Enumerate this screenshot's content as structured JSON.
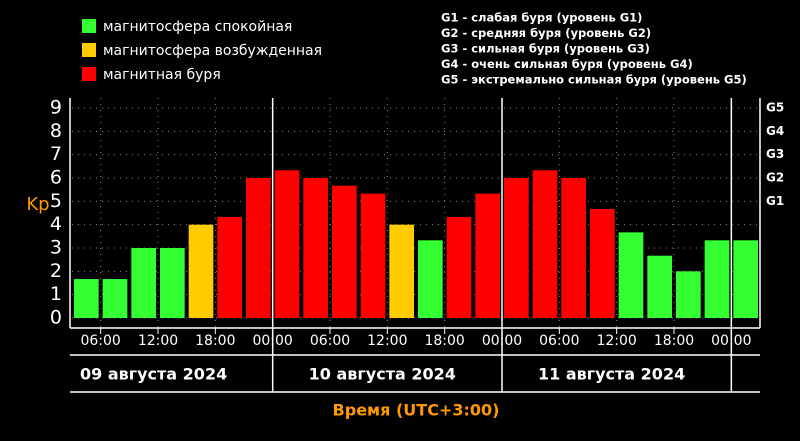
{
  "chart_data": {
    "type": "bar",
    "legend": [
      {
        "name": "магнитосфера спокойная",
        "color": "#33ff33"
      },
      {
        "name": "магнитосфера возбужденная",
        "color": "#ffcc00"
      },
      {
        "name": "магнитная буря",
        "color": "#ff0000"
      }
    ],
    "notes": [
      "G1 - слабая буря (уровень G1)",
      "G2 - средняя буря (уровень G2)",
      "G3 - сильная буря (уровень G3)",
      "G4 - очень сильная буря (уровень G4)",
      "G5 - экстремально сильная буря (уровень G5)"
    ],
    "ylabel": "Kp",
    "xlabel": "Время (UTC+3:00)",
    "values": [
      1.67,
      1.67,
      3,
      3,
      4,
      4.33,
      6,
      6.33,
      6,
      5.67,
      5.33,
      4,
      3.33,
      4.33,
      5.33,
      6,
      6.33,
      6,
      4.67,
      3.67,
      2.67,
      2,
      3.33,
      3.33
    ],
    "colors": [
      "#33ff33",
      "#33ff33",
      "#33ff33",
      "#33ff33",
      "#ffcc00",
      "#ff0000",
      "#ff0000",
      "#ff0000",
      "#ff0000",
      "#ff0000",
      "#ff0000",
      "#ffcc00",
      "#33ff33",
      "#ff0000",
      "#ff0000",
      "#ff0000",
      "#ff0000",
      "#ff0000",
      "#ff0000",
      "#33ff33",
      "#33ff33",
      "#33ff33",
      "#33ff33",
      "#33ff33"
    ],
    "xlim": [
      0,
      24
    ],
    "xticks": [
      {
        "value": 1,
        "label": "06:00"
      },
      {
        "value": 3,
        "label": "12:00"
      },
      {
        "value": 5,
        "label": "18:00"
      },
      {
        "value": 7,
        "label": "00:00"
      },
      {
        "value": 9,
        "label": "06:00"
      },
      {
        "value": 11,
        "label": "12:00"
      },
      {
        "value": 13,
        "label": "18:00"
      },
      {
        "value": 15,
        "label": "00:00"
      },
      {
        "value": 17,
        "label": "06:00"
      },
      {
        "value": 19,
        "label": "12:00"
      },
      {
        "value": 21,
        "label": "18:00"
      },
      {
        "value": 23,
        "label": "00:00"
      }
    ],
    "days": [
      {
        "start": 0,
        "label": "09 августа 2024"
      },
      {
        "start": 7,
        "label": "10 августа 2024"
      },
      {
        "start": 15,
        "label": "11 августа 2024"
      },
      {
        "start": 23
      }
    ],
    "ylim": [
      0,
      9
    ],
    "yticks": [
      0,
      1,
      2,
      3,
      4,
      5,
      6,
      7,
      8,
      9
    ],
    "y2ticks": [
      {
        "value": 5,
        "label": "G1"
      },
      {
        "value": 6,
        "label": "G2"
      },
      {
        "value": 7,
        "label": "G3"
      },
      {
        "value": 8,
        "label": "G4"
      },
      {
        "value": 9,
        "label": "G5"
      }
    ],
    "grid": true
  }
}
